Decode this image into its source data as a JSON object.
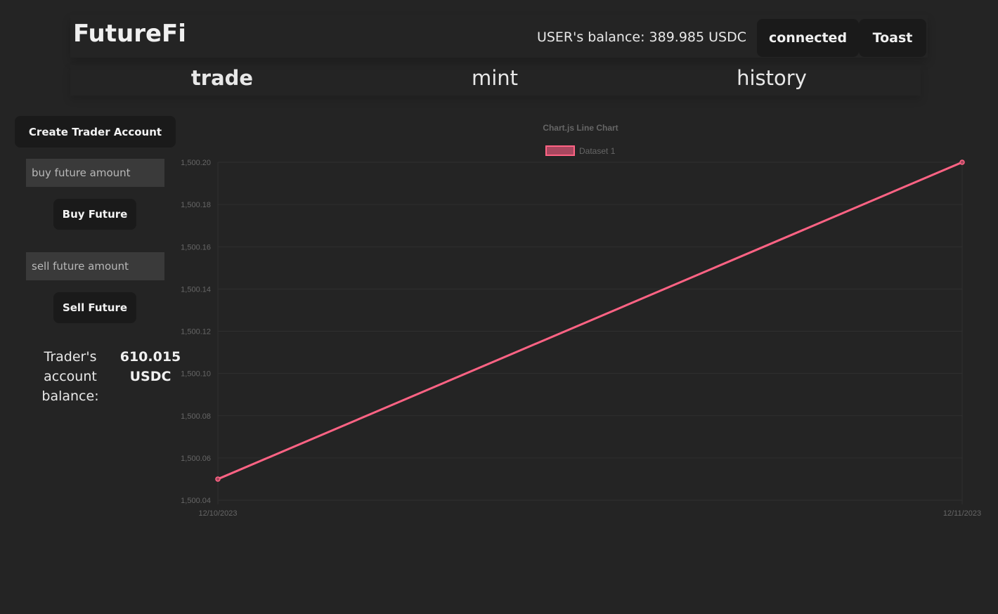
{
  "header": {
    "app_title": "FutureFi",
    "user_balance": "USER's balance: 389.985 USDC",
    "connected_label": "connected",
    "toast_label": "Toast"
  },
  "nav": {
    "tabs": [
      {
        "label": "trade",
        "active": true
      },
      {
        "label": "mint",
        "active": false
      },
      {
        "label": "history",
        "active": false
      }
    ]
  },
  "sidebar": {
    "create_account_label": "Create Trader Account",
    "buy_input_placeholder": "buy future amount",
    "buy_button_label": "Buy Future",
    "sell_input_placeholder": "sell future amount",
    "sell_button_label": "Sell Future",
    "trader_balance_label": "Trader's account balance:",
    "trader_balance_value": "610.015 USDC"
  },
  "colors": {
    "background": "#242424",
    "button_bg": "#1a1a1a",
    "input_bg": "#3a3a3a",
    "series_line": "#ff6384",
    "series_fill": "#a8475f"
  },
  "chart_data": {
    "type": "line",
    "title": "Chart.js Line Chart",
    "x": [
      "12/10/2023",
      "12/11/2023"
    ],
    "series": [
      {
        "name": "Dataset 1",
        "values": [
          1500.05,
          1500.2
        ]
      }
    ],
    "ylim": [
      1500.04,
      1500.2
    ],
    "yticks": [
      "1,500.20",
      "1,500.18",
      "1,500.16",
      "1,500.14",
      "1,500.12",
      "1,500.10",
      "1,500.08",
      "1,500.06",
      "1,500.04"
    ],
    "xlabel": "",
    "ylabel": "",
    "grid": true,
    "legend": "top-center"
  }
}
